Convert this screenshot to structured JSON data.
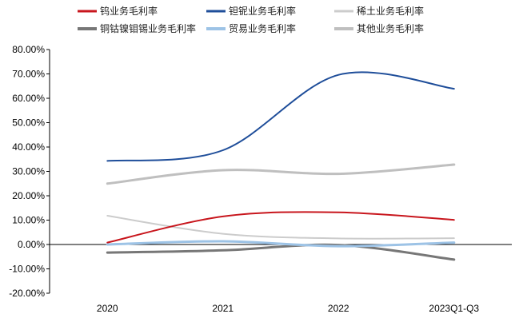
{
  "chart_data": {
    "type": "line",
    "categories": [
      "2020",
      "2021",
      "2022",
      "2023Q1-Q3"
    ],
    "ylim": [
      -20,
      80
    ],
    "ystep": 10,
    "ytick_labels": [
      "-20.00%",
      "-10.00%",
      "0.00%",
      "10.00%",
      "20.00%",
      "30.00%",
      "40.00%",
      "50.00%",
      "60.00%",
      "70.00%",
      "80.00%"
    ],
    "legend_placement": "top",
    "series": [
      {
        "name": "钨业务毛利率",
        "color": "#c8161d",
        "width": 2,
        "values": [
          0.8,
          11.5,
          13.2,
          10.1
        ]
      },
      {
        "name": "钽铌业务毛利率",
        "color": "#1f4e9a",
        "width": 2,
        "values": [
          34.3,
          38.7,
          69.6,
          63.9
        ]
      },
      {
        "name": "稀土业务毛利率",
        "color": "#cccccc",
        "width": 2,
        "values": [
          11.8,
          4.4,
          2.5,
          2.6
        ]
      },
      {
        "name": "铜钴镍钼锡业务毛利率",
        "color": "#777777",
        "width": 3,
        "values": [
          -3.3,
          -2.4,
          -0.2,
          -6.2
        ]
      },
      {
        "name": "贸易业务毛利率",
        "color": "#9dc3e6",
        "width": 3,
        "values": [
          0.0,
          1.3,
          -0.7,
          0.8
        ]
      },
      {
        "name": "其他业务毛利率",
        "color": "#bfbfbf",
        "width": 3,
        "values": [
          25.0,
          30.5,
          29.0,
          32.8
        ]
      }
    ]
  }
}
